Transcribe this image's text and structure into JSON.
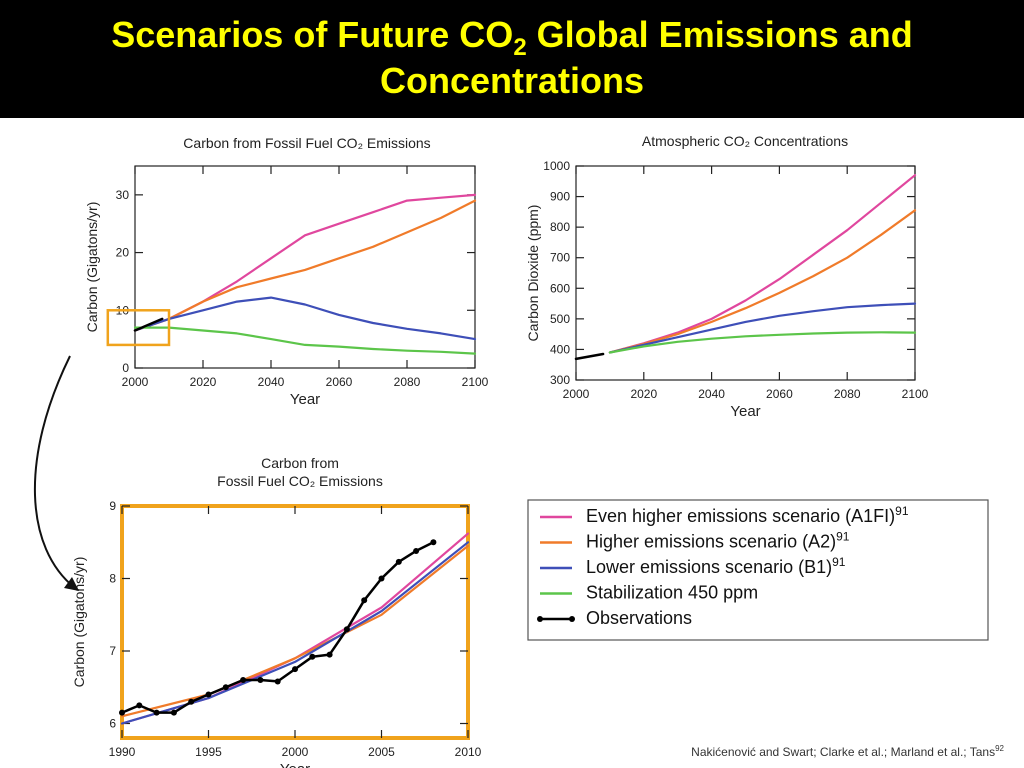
{
  "slide": {
    "title_line1_a": "Scenarios of Future CO",
    "title_sub": "2",
    "title_line1_b": " Global Emissions and",
    "title_line2": "Concentrations",
    "citation": "Nakićenović and Swart; Clarke et al.; Marland et al.; Tans",
    "citation_sup": "92"
  },
  "colors": {
    "header_bg": "#000000",
    "title_color": "#ffff00",
    "A1FI": "#e0479e",
    "A2": "#f07b2a",
    "B1": "#3e4fb8",
    "stab": "#5cc54a",
    "obs": "#000000",
    "highlight_box": "#f0a31c"
  },
  "legend": [
    {
      "key": "A1FI",
      "label": "Even higher emissions scenario (A1FI)",
      "sup": "91"
    },
    {
      "key": "A2",
      "label": "Higher emissions scenario (A2)",
      "sup": "91"
    },
    {
      "key": "B1",
      "label": "Lower emissions scenario (B1)",
      "sup": "91"
    },
    {
      "key": "stab",
      "label": "Stabilization 450 ppm",
      "sup": ""
    },
    {
      "key": "obs",
      "label": "Observations",
      "sup": ""
    }
  ],
  "chart_data": [
    {
      "id": "emissions",
      "type": "line",
      "title": "Carbon from Fossil Fuel CO₂ Emissions",
      "xlabel": "Year",
      "ylabel": "Carbon (Gigatons/yr)",
      "xlim": [
        2000,
        2100
      ],
      "ylim": [
        0,
        35
      ],
      "xticks": [
        2000,
        2020,
        2040,
        2060,
        2080,
        2100
      ],
      "yticks": [
        0,
        10,
        20,
        30
      ],
      "series": [
        {
          "key": "A1FI",
          "x": [
            2000,
            2010,
            2020,
            2030,
            2040,
            2050,
            2060,
            2070,
            2080,
            2090,
            2100
          ],
          "y": [
            6.5,
            8.5,
            11.5,
            15,
            19,
            23,
            25,
            27,
            29,
            29.5,
            30
          ]
        },
        {
          "key": "A2",
          "x": [
            2000,
            2010,
            2020,
            2030,
            2040,
            2050,
            2060,
            2070,
            2080,
            2090,
            2100
          ],
          "y": [
            6.5,
            8.5,
            11.5,
            14,
            15.5,
            17,
            19,
            21,
            23.5,
            26,
            29
          ]
        },
        {
          "key": "B1",
          "x": [
            2000,
            2010,
            2020,
            2030,
            2040,
            2050,
            2060,
            2070,
            2080,
            2090,
            2100
          ],
          "y": [
            6.5,
            8.5,
            10,
            11.5,
            12.2,
            11,
            9.2,
            7.8,
            6.8,
            6,
            5
          ]
        },
        {
          "key": "stab",
          "x": [
            2000,
            2010,
            2020,
            2030,
            2040,
            2050,
            2060,
            2070,
            2080,
            2090,
            2100
          ],
          "y": [
            7,
            7,
            6.5,
            6,
            5,
            4,
            3.7,
            3.3,
            3,
            2.8,
            2.5
          ]
        },
        {
          "key": "obs",
          "x": [
            2000,
            2008
          ],
          "y": [
            6.5,
            8.5
          ]
        }
      ]
    },
    {
      "id": "concentrations",
      "type": "line",
      "title": "Atmospheric CO₂ Concentrations",
      "xlabel": "Year",
      "ylabel": "Carbon Dioxide (ppm)",
      "xlim": [
        2000,
        2100
      ],
      "ylim": [
        300,
        1000
      ],
      "xticks": [
        2000,
        2020,
        2040,
        2060,
        2080,
        2100
      ],
      "yticks": [
        300,
        400,
        500,
        600,
        700,
        800,
        900,
        1000
      ],
      "series": [
        {
          "key": "A1FI",
          "x": [
            2010,
            2020,
            2030,
            2040,
            2050,
            2060,
            2070,
            2080,
            2090,
            2100
          ],
          "y": [
            390,
            420,
            455,
            500,
            560,
            630,
            710,
            790,
            880,
            970
          ]
        },
        {
          "key": "A2",
          "x": [
            2010,
            2020,
            2030,
            2040,
            2050,
            2060,
            2070,
            2080,
            2090,
            2100
          ],
          "y": [
            390,
            418,
            450,
            490,
            535,
            585,
            640,
            700,
            775,
            855
          ]
        },
        {
          "key": "B1",
          "x": [
            2010,
            2020,
            2030,
            2040,
            2050,
            2060,
            2070,
            2080,
            2090,
            2100
          ],
          "y": [
            390,
            415,
            440,
            465,
            490,
            510,
            525,
            538,
            545,
            550
          ]
        },
        {
          "key": "stab",
          "x": [
            2010,
            2020,
            2030,
            2040,
            2050,
            2060,
            2070,
            2080,
            2090,
            2100
          ],
          "y": [
            390,
            410,
            425,
            435,
            443,
            448,
            452,
            455,
            456,
            455
          ]
        },
        {
          "key": "obs",
          "x": [
            2000,
            2008
          ],
          "y": [
            369,
            385
          ]
        }
      ]
    },
    {
      "id": "zoom",
      "type": "line",
      "title": "Carbon from Fossil Fuel CO₂ Emissions",
      "title_line1": "Carbon from",
      "title_line2": "Fossil Fuel CO₂ Emissions",
      "xlabel": "Year",
      "ylabel": "Carbon (Gigatons/yr)",
      "xlim": [
        1990,
        2010
      ],
      "ylim": [
        5.8,
        9
      ],
      "xticks": [
        1990,
        1995,
        2000,
        2005,
        2010
      ],
      "yticks": [
        6,
        7,
        8,
        9
      ],
      "series": [
        {
          "key": "A1FI",
          "x": [
            1990,
            1995,
            2000,
            2005,
            2010
          ],
          "y": [
            6.0,
            6.35,
            6.9,
            7.6,
            8.62
          ]
        },
        {
          "key": "A2",
          "x": [
            1990,
            1995,
            2000,
            2005,
            2010
          ],
          "y": [
            6.1,
            6.4,
            6.9,
            7.5,
            8.45
          ]
        },
        {
          "key": "B1",
          "x": [
            1990,
            1995,
            2000,
            2005,
            2010
          ],
          "y": [
            6.0,
            6.35,
            6.85,
            7.55,
            8.5
          ]
        },
        {
          "key": "obs",
          "x": [
            1990,
            1991,
            1992,
            1993,
            1994,
            1995,
            1996,
            1997,
            1998,
            1999,
            2000,
            2001,
            2002,
            2003,
            2004,
            2005,
            2006,
            2007,
            2008
          ],
          "y": [
            6.15,
            6.25,
            6.15,
            6.15,
            6.3,
            6.4,
            6.5,
            6.6,
            6.6,
            6.58,
            6.75,
            6.92,
            6.95,
            7.3,
            7.7,
            8.0,
            8.23,
            8.38,
            8.5
          ]
        }
      ]
    }
  ]
}
